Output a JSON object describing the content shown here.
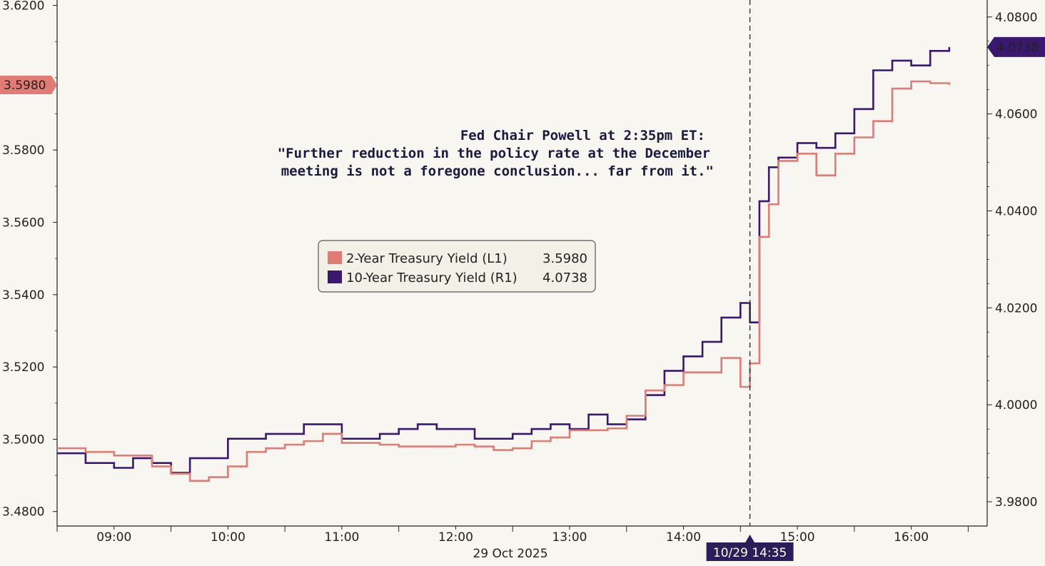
{
  "chart_data": {
    "type": "line",
    "x_date_label": "29 Oct 2025",
    "x_ticks": [
      "09:00",
      "10:00",
      "11:00",
      "12:00",
      "13:00",
      "14:00",
      "15:00",
      "16:00"
    ],
    "x_range": [
      "08:30",
      "16:40"
    ],
    "y_left": {
      "ticks": [
        "3.4800",
        "3.5000",
        "3.5200",
        "3.5400",
        "3.5600",
        "3.5800",
        "3.6200"
      ],
      "range": [
        3.476,
        3.6215
      ]
    },
    "y_right": {
      "ticks": [
        "3.9800",
        "4.0000",
        "4.0200",
        "4.0400",
        "4.0600",
        "4.0800"
      ],
      "range": [
        3.975,
        4.0835
      ]
    },
    "series": [
      {
        "name": "2-Year Treasury Yield (L1)",
        "axis": "left",
        "color": "#e07c75",
        "last_value": "3.5980",
        "points": [
          [
            "08:30",
            3.4975
          ],
          [
            "08:45",
            3.4965
          ],
          [
            "09:00",
            3.4955
          ],
          [
            "09:10",
            3.4955
          ],
          [
            "09:20",
            3.4925
          ],
          [
            "09:30",
            3.4905
          ],
          [
            "09:40",
            3.4885
          ],
          [
            "09:50",
            3.4895
          ],
          [
            "10:00",
            3.4925
          ],
          [
            "10:10",
            3.4965
          ],
          [
            "10:20",
            3.4975
          ],
          [
            "10:30",
            3.4985
          ],
          [
            "10:40",
            3.4995
          ],
          [
            "10:50",
            3.5015
          ],
          [
            "11:00",
            3.499
          ],
          [
            "11:10",
            3.499
          ],
          [
            "11:20",
            3.4985
          ],
          [
            "11:30",
            3.498
          ],
          [
            "11:40",
            3.498
          ],
          [
            "11:50",
            3.498
          ],
          [
            "12:00",
            3.4985
          ],
          [
            "12:10",
            3.498
          ],
          [
            "12:20",
            3.497
          ],
          [
            "12:30",
            3.4975
          ],
          [
            "12:40",
            3.4995
          ],
          [
            "12:50",
            3.5005
          ],
          [
            "13:00",
            3.5025
          ],
          [
            "13:10",
            3.5025
          ],
          [
            "13:20",
            3.503
          ],
          [
            "13:30",
            3.5065
          ],
          [
            "13:40",
            3.5135
          ],
          [
            "13:50",
            3.515
          ],
          [
            "14:00",
            3.5185
          ],
          [
            "14:10",
            3.5185
          ],
          [
            "14:20",
            3.5225
          ],
          [
            "14:30",
            3.5145
          ],
          [
            "14:35",
            3.521
          ],
          [
            "14:40",
            3.556
          ],
          [
            "14:45",
            3.565
          ],
          [
            "14:50",
            3.577
          ],
          [
            "15:00",
            3.579
          ],
          [
            "15:10",
            3.573
          ],
          [
            "15:20",
            3.579
          ],
          [
            "15:30",
            3.5835
          ],
          [
            "15:40",
            3.588
          ],
          [
            "15:50",
            3.597
          ],
          [
            "16:00",
            3.599
          ],
          [
            "16:10",
            3.5985
          ],
          [
            "16:20",
            3.598
          ]
        ]
      },
      {
        "name": "10-Year Treasury Yield (R1)",
        "axis": "right",
        "color": "#3a1870",
        "last_value": "4.0738",
        "points": [
          [
            "08:30",
            3.99
          ],
          [
            "08:45",
            3.988
          ],
          [
            "09:00",
            3.987
          ],
          [
            "09:10",
            3.989
          ],
          [
            "09:20",
            3.988
          ],
          [
            "09:30",
            3.986
          ],
          [
            "09:40",
            3.989
          ],
          [
            "09:50",
            3.989
          ],
          [
            "10:00",
            3.993
          ],
          [
            "10:10",
            3.993
          ],
          [
            "10:20",
            3.994
          ],
          [
            "10:30",
            3.994
          ],
          [
            "10:40",
            3.996
          ],
          [
            "10:50",
            3.996
          ],
          [
            "11:00",
            3.993
          ],
          [
            "11:10",
            3.993
          ],
          [
            "11:20",
            3.994
          ],
          [
            "11:30",
            3.995
          ],
          [
            "11:40",
            3.996
          ],
          [
            "11:50",
            3.995
          ],
          [
            "12:00",
            3.995
          ],
          [
            "12:10",
            3.993
          ],
          [
            "12:20",
            3.993
          ],
          [
            "12:30",
            3.994
          ],
          [
            "12:40",
            3.995
          ],
          [
            "12:50",
            3.996
          ],
          [
            "13:00",
            3.995
          ],
          [
            "13:10",
            3.998
          ],
          [
            "13:20",
            3.996
          ],
          [
            "13:30",
            3.997
          ],
          [
            "13:40",
            4.002
          ],
          [
            "13:50",
            4.007
          ],
          [
            "14:00",
            4.01
          ],
          [
            "14:10",
            4.013
          ],
          [
            "14:20",
            4.018
          ],
          [
            "14:30",
            4.021
          ],
          [
            "14:35",
            4.017
          ],
          [
            "14:40",
            4.042
          ],
          [
            "14:45",
            4.049
          ],
          [
            "14:50",
            4.051
          ],
          [
            "15:00",
            4.054
          ],
          [
            "15:10",
            4.053
          ],
          [
            "15:20",
            4.056
          ],
          [
            "15:30",
            4.061
          ],
          [
            "15:40",
            4.069
          ],
          [
            "15:50",
            4.071
          ],
          [
            "16:00",
            4.07
          ],
          [
            "16:10",
            4.073
          ],
          [
            "16:20",
            4.0738
          ]
        ]
      }
    ],
    "event_marker": {
      "time": "14:35",
      "label": "10/29 14:35"
    },
    "annotation": [
      "Fed Chair Powell at 2:35pm ET:",
      "\"Further reduction in the policy rate at the December",
      "meeting is not a foregone conclusion... far from it.\""
    ],
    "legend_placement": "center"
  }
}
